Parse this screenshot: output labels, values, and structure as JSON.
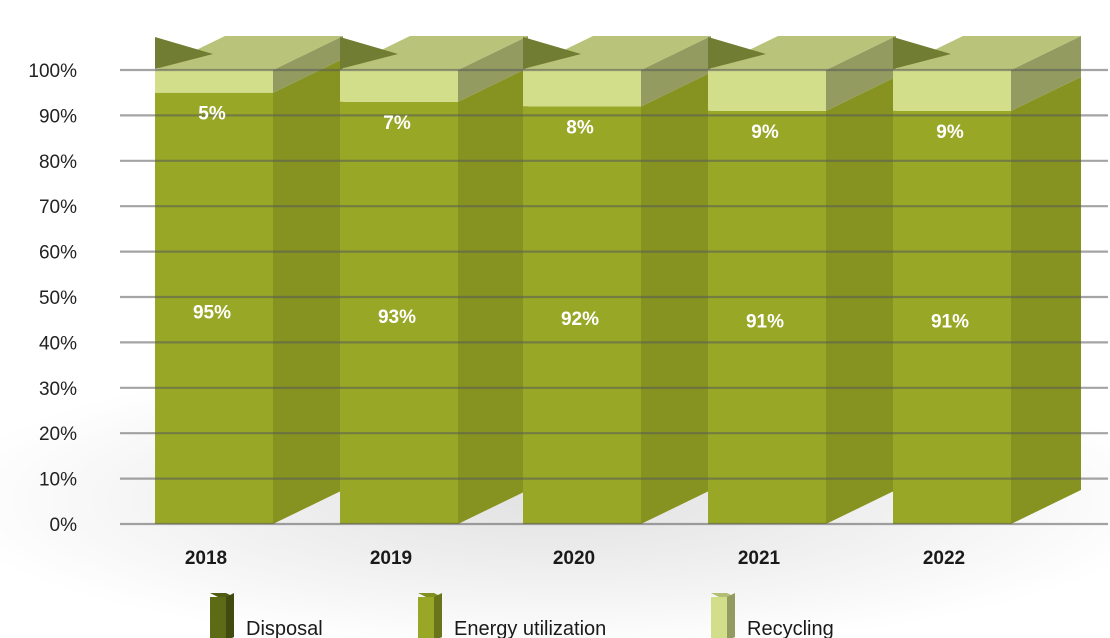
{
  "chart_data": {
    "type": "bar",
    "stacked": true,
    "three_d": true,
    "categories": [
      "2018",
      "2019",
      "2020",
      "2021",
      "2022"
    ],
    "series": [
      {
        "name": "Disposal",
        "values": [
          0,
          0,
          0,
          0,
          0
        ],
        "color": "#5e6b16",
        "labels": [
          "",
          "",
          "",
          "",
          ""
        ]
      },
      {
        "name": "Energy utilization",
        "values": [
          95,
          93,
          92,
          91,
          91
        ],
        "color": "#98a726",
        "labels": [
          "95%",
          "93%",
          "92%",
          "91%",
          "91%"
        ]
      },
      {
        "name": "Recycling",
        "values": [
          5,
          7,
          8,
          9,
          9
        ],
        "color": "#d2de89",
        "labels": [
          "5%",
          "7%",
          "8%",
          "9%",
          "9%"
        ]
      }
    ],
    "y_ticks": [
      "0%",
      "10%",
      "20%",
      "30%",
      "40%",
      "50%",
      "60%",
      "70%",
      "80%",
      "90%",
      "100%"
    ],
    "ylim": [
      0,
      100
    ],
    "grid": true,
    "legend_position": "bottom",
    "title": "",
    "xlabel": "",
    "ylabel": ""
  }
}
